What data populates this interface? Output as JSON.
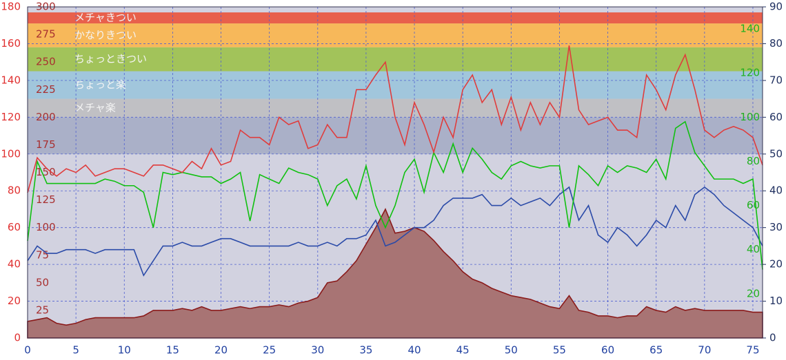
{
  "chart_data": {
    "type": "line",
    "x": [
      0,
      1,
      2,
      3,
      4,
      5,
      6,
      7,
      8,
      9,
      10,
      11,
      12,
      13,
      14,
      15,
      16,
      17,
      18,
      19,
      20,
      21,
      22,
      23,
      24,
      25,
      26,
      27,
      28,
      29,
      30,
      31,
      32,
      33,
      34,
      35,
      36,
      37,
      38,
      39,
      40,
      41,
      42,
      43,
      44,
      45,
      46,
      47,
      48,
      49,
      50,
      51,
      52,
      53,
      54,
      55,
      56,
      57,
      58,
      59,
      60,
      61,
      62,
      63,
      64,
      65,
      66,
      67,
      68,
      69,
      70,
      71,
      72,
      73,
      74,
      75,
      76
    ],
    "xlim": [
      0,
      76
    ],
    "xticks": [
      0,
      5,
      10,
      15,
      20,
      25,
      30,
      35,
      40,
      45,
      50,
      55,
      60,
      65,
      70,
      75
    ],
    "ylim": [
      0,
      180
    ],
    "yticks": [
      0,
      20,
      40,
      60,
      80,
      100,
      120,
      140,
      160,
      180
    ],
    "y2lim": [
      0,
      90
    ],
    "y2ticks": [
      0,
      10,
      20,
      30,
      40,
      50,
      60,
      70,
      80,
      90
    ],
    "y3lim": [
      0,
      150
    ],
    "y3ticks": [
      20,
      40,
      60,
      80,
      100,
      120,
      140
    ],
    "y4lim": [
      0,
      300
    ],
    "y4ticks": [
      25,
      50,
      75,
      100,
      125,
      150,
      175,
      200,
      225,
      250,
      275,
      300
    ],
    "grid": true,
    "zones": [
      {
        "label": "メチャきつい",
        "color": "#e8604c",
        "from": 171,
        "to": 177
      },
      {
        "label": "かなりきつい",
        "color": "#f7b85a",
        "from": 158,
        "to": 171
      },
      {
        "label": "ちょっときつい",
        "color": "#a2c35a",
        "from": 145,
        "to": 158
      },
      {
        "label": "ちょっと楽",
        "color": "#a1c6dc",
        "from": 130,
        "to": 145
      },
      {
        "label": "メチャ楽",
        "color": "#c0c0c4",
        "from": 120,
        "to": 130
      }
    ],
    "series": [
      {
        "axis": "y",
        "color": "#8a1a1a",
        "fill": "#a87474",
        "values": [
          9,
          10,
          11,
          8,
          7,
          8,
          10,
          11,
          11,
          11,
          11,
          11,
          12,
          15,
          15,
          15,
          16,
          15,
          17,
          15,
          15,
          16,
          17,
          16,
          17,
          17,
          18,
          17,
          19,
          20,
          22,
          30,
          31,
          36,
          42,
          51,
          60,
          70,
          57,
          58,
          60,
          58,
          53,
          47,
          42,
          36,
          32,
          30,
          27,
          25,
          23,
          22,
          21,
          19,
          17,
          16,
          23,
          15,
          14,
          12,
          12,
          11,
          12,
          12,
          17,
          15,
          14,
          17,
          15,
          16,
          15,
          15,
          15,
          15,
          15,
          14,
          14
        ]
      },
      {
        "axis": "y2",
        "color": "#2a4aa8",
        "values": [
          21,
          25,
          23,
          23,
          24,
          24,
          24,
          23,
          24,
          24,
          24,
          24,
          17,
          21,
          25,
          25,
          26,
          25,
          25,
          26,
          27,
          27,
          26,
          25,
          25,
          25,
          25,
          25,
          26,
          25,
          25,
          26,
          25,
          27,
          27,
          28,
          32,
          25,
          26,
          28,
          30,
          30,
          32,
          36,
          38,
          38,
          38,
          39,
          36,
          36,
          38,
          36,
          37,
          38,
          36,
          39,
          41,
          32,
          36,
          28,
          26,
          30,
          28,
          25,
          28,
          32,
          30,
          36,
          32,
          39,
          41,
          39,
          36,
          34,
          32,
          30,
          25
        ]
      },
      {
        "axis": "y3",
        "color": "#10c010",
        "values": [
          44,
          80,
          70,
          70,
          70,
          70,
          70,
          70,
          72,
          71,
          69,
          69,
          66,
          50,
          75,
          74,
          75,
          74,
          73,
          73,
          70,
          72,
          75,
          53,
          74,
          72,
          70,
          77,
          75,
          74,
          72,
          60,
          69,
          72,
          63,
          78,
          60,
          50,
          60,
          75,
          81,
          66,
          84,
          75,
          88,
          75,
          86,
          81,
          75,
          72,
          78,
          80,
          78,
          77,
          78,
          78,
          50,
          78,
          74,
          69,
          78,
          75,
          78,
          77,
          75,
          81,
          72,
          95,
          98,
          84,
          78,
          72,
          72,
          72,
          70,
          72,
          31
        ]
      },
      {
        "axis": "y",
        "color": "#e03c3c",
        "values": [
          79,
          98,
          92,
          88,
          92,
          90,
          94,
          88,
          90,
          92,
          92,
          90,
          88,
          94,
          94,
          92,
          90,
          96,
          92,
          103,
          94,
          96,
          113,
          109,
          109,
          105,
          120,
          116,
          118,
          103,
          105,
          116,
          109,
          109,
          135,
          135,
          143,
          150,
          120,
          105,
          128,
          116,
          101,
          120,
          109,
          135,
          143,
          128,
          135,
          116,
          131,
          113,
          128,
          116,
          128,
          120,
          159,
          124,
          116,
          118,
          120,
          113,
          113,
          109,
          143,
          135,
          124,
          143,
          154,
          135,
          113,
          109,
          113,
          115,
          113,
          109,
          94
        ]
      }
    ]
  }
}
